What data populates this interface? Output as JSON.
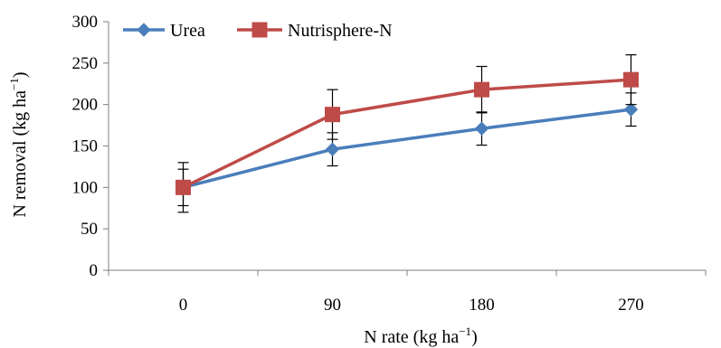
{
  "chart_data": {
    "type": "line",
    "categories": [
      "0",
      "90",
      "180",
      "270"
    ],
    "series": [
      {
        "name": "Urea",
        "color": "#4a7ebb",
        "marker": "diamond",
        "values": [
          100,
          146,
          171,
          194
        ],
        "errors": [
          30,
          20,
          20,
          20
        ]
      },
      {
        "name": "Nutrisphere-N",
        "color": "#be4b48",
        "marker": "square",
        "values": [
          100,
          188,
          218,
          230
        ],
        "errors": [
          22,
          30,
          28,
          30
        ]
      }
    ],
    "xlabel": "N rate (kg ha",
    "xlabel_sup": "−1",
    "xlabel_end": ")",
    "ylabel": "N removal (kg ha",
    "ylabel_sup": "−1",
    "ylabel_end": ")",
    "ylim": [
      0,
      300
    ],
    "yticks": [
      "0",
      "50",
      "100",
      "150",
      "200",
      "250",
      "300"
    ],
    "grid": false,
    "legend_position": "top-left"
  }
}
